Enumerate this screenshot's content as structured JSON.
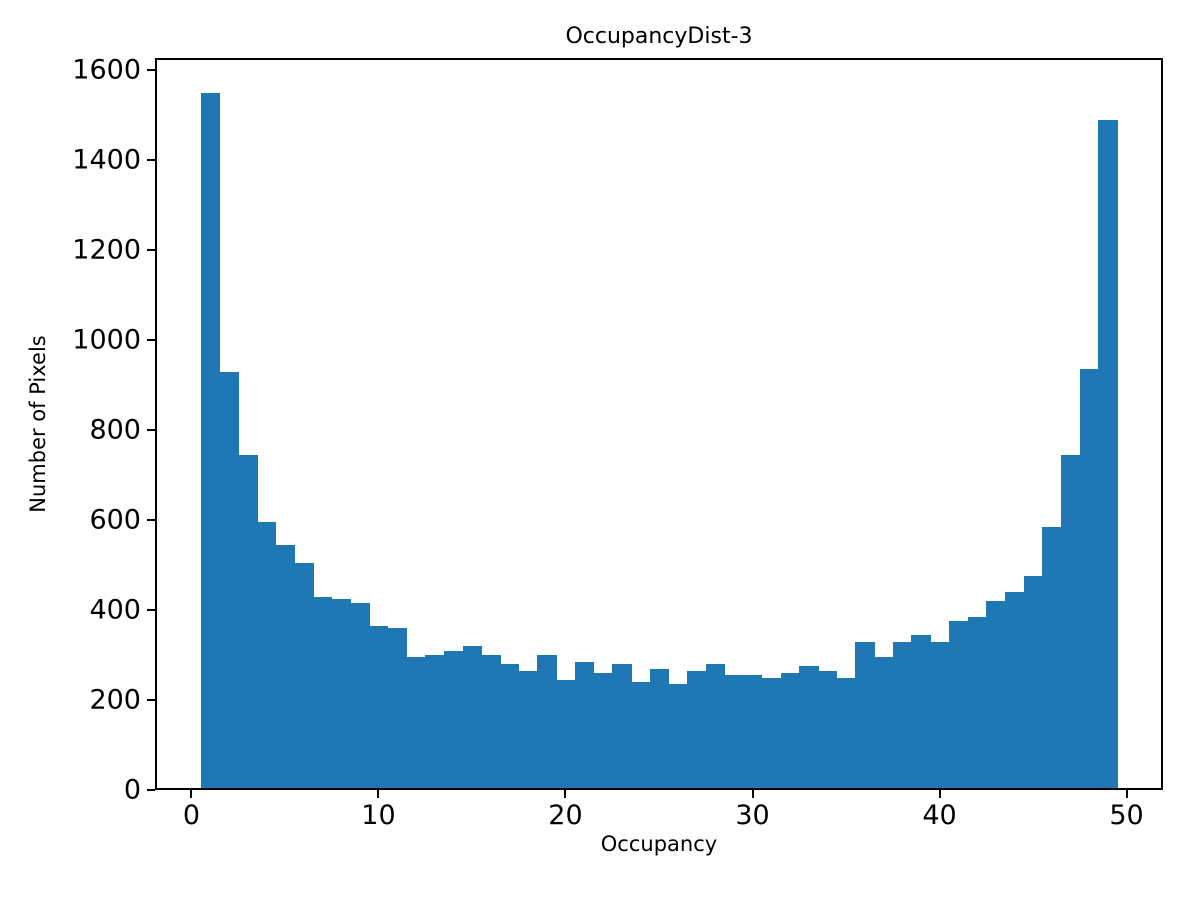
{
  "chart_data": {
    "type": "bar",
    "subtype": "histogram",
    "title": "OccupancyDist-3",
    "xlabel": "Occupancy",
    "ylabel": "Number of Pixels",
    "bar_color": "#1f77b4",
    "background_color": "#ffffff",
    "text_color": "#000000",
    "grid": false,
    "legend": "none",
    "xlim": [
      -1.95,
      51.95
    ],
    "ylim": [
      0,
      1627.5
    ],
    "xticks": [
      0,
      10,
      20,
      30,
      40,
      50
    ],
    "yticks": [
      0,
      200,
      400,
      600,
      800,
      1000,
      1200,
      1400,
      1600
    ],
    "bin_start": 0.5,
    "bin_width": 1,
    "values": [
      1550,
      930,
      745,
      595,
      545,
      505,
      430,
      425,
      415,
      365,
      360,
      295,
      300,
      310,
      320,
      300,
      280,
      265,
      300,
      245,
      285,
      260,
      280,
      240,
      270,
      235,
      265,
      280,
      255,
      255,
      250,
      260,
      275,
      265,
      250,
      330,
      295,
      330,
      345,
      330,
      375,
      385,
      420,
      440,
      475,
      585,
      745,
      935,
      1490
    ]
  }
}
